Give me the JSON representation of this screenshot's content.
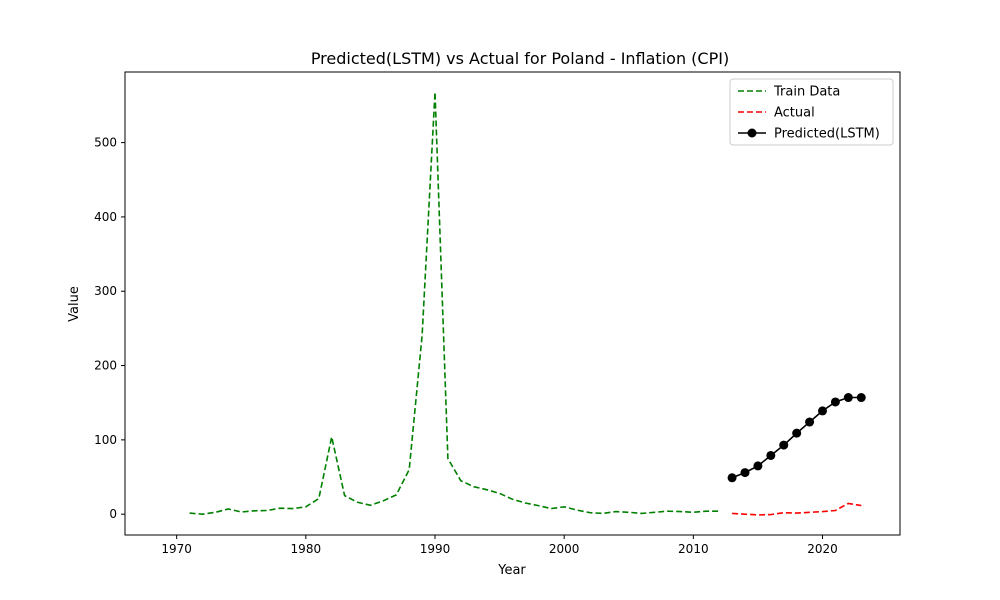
{
  "chart_data": {
    "type": "line",
    "title": "Predicted(LSTM) vs Actual for Poland - Inflation (CPI)",
    "xlabel": "Year",
    "ylabel": "Value",
    "xlim": [
      1966,
      2026
    ],
    "ylim": [
      -28,
      595
    ],
    "xticks": [
      1970,
      1980,
      1990,
      2000,
      2010,
      2020
    ],
    "yticks": [
      0,
      100,
      200,
      300,
      400,
      500
    ],
    "grid": false,
    "legend_position": "top-right",
    "series": [
      {
        "name": "Train Data",
        "color": "#008000",
        "style": "dashed",
        "marker": false,
        "x": [
          1971,
          1972,
          1973,
          1974,
          1975,
          1976,
          1977,
          1978,
          1979,
          1980,
          1981,
          1982,
          1983,
          1984,
          1985,
          1986,
          1987,
          1988,
          1989,
          1990,
          1991,
          1992,
          1993,
          1994,
          1995,
          1996,
          1997,
          1998,
          1999,
          2000,
          2001,
          2002,
          2003,
          2004,
          2005,
          2006,
          2007,
          2008,
          2009,
          2010,
          2011,
          2012
        ],
        "y": [
          1.5,
          0,
          2.5,
          7,
          3,
          4.5,
          5,
          8,
          7.5,
          10,
          21,
          104,
          25,
          16,
          12,
          18,
          26,
          60,
          240,
          568,
          75,
          45,
          37,
          33,
          28,
          20,
          15,
          11.5,
          7.5,
          10,
          5.5,
          2,
          1,
          3.5,
          2.5,
          1,
          2.5,
          4,
          3.5,
          2.5,
          4,
          4
        ]
      },
      {
        "name": "Actual",
        "color": "#ff0000",
        "style": "dashed",
        "marker": false,
        "x": [
          2013,
          2014,
          2015,
          2016,
          2017,
          2018,
          2019,
          2020,
          2021,
          2022,
          2023
        ],
        "y": [
          1,
          0,
          -1,
          -0.5,
          2,
          1.5,
          2.5,
          3.5,
          5,
          14.5,
          11.5
        ]
      },
      {
        "name": "Predicted(LSTM)",
        "color": "#000000",
        "style": "solid",
        "marker": true,
        "x": [
          2013,
          2014,
          2015,
          2016,
          2017,
          2018,
          2019,
          2020,
          2021,
          2022,
          2023
        ],
        "y": [
          49,
          56,
          65,
          79,
          93,
          109,
          124,
          139,
          151,
          157,
          157
        ]
      }
    ]
  }
}
